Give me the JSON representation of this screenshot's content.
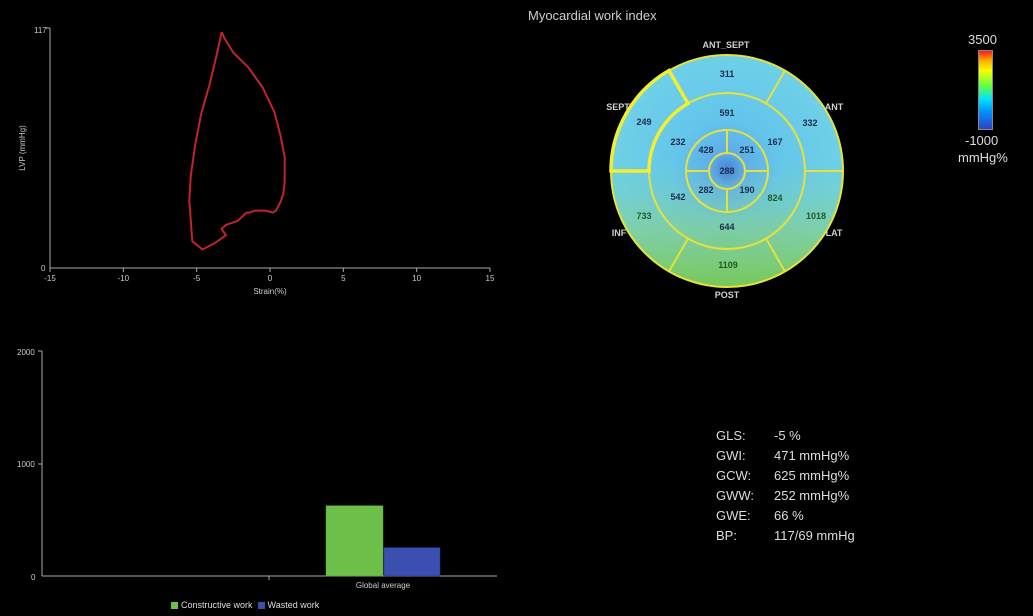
{
  "pv_loop": {
    "ylabel": "LVP (mmHg)",
    "xlabel": "Strain(%)",
    "y_ticks": [
      "117",
      "0"
    ],
    "x_ticks": [
      "-15",
      "-10",
      "-5",
      "0",
      "5",
      "10",
      "15"
    ],
    "colors": {
      "loop": "#c0242a"
    }
  },
  "bullseye": {
    "title": "Myocardial work index",
    "labels": {
      "ant_sept": "ANT_SEPT",
      "ant": "ANT",
      "sept": "SEPT",
      "lat": "LAT",
      "inf": "INF",
      "post": "POST"
    },
    "basal": [
      "311",
      "332",
      "1018",
      "1109",
      "733",
      "249"
    ],
    "mid": [
      "591",
      "167",
      "824",
      "644",
      "542",
      "232"
    ],
    "apical": [
      "251",
      "190",
      "282",
      "428"
    ],
    "apex": "288"
  },
  "colorbar": {
    "max": "3500",
    "min": "-1000",
    "unit": "mmHg%"
  },
  "bar_chart": {
    "y_ticks": [
      "2000",
      "1000",
      "0"
    ],
    "category": "Global average",
    "legend": {
      "constructive": "Constructive work",
      "wasted": "Wasted work"
    },
    "colors": {
      "constructive": "#6cc04a",
      "wasted": "#3a4fb0"
    }
  },
  "metrics": [
    {
      "label": "GLS:",
      "value": "-5 %"
    },
    {
      "label": "GWI:",
      "value": "471 mmHg%"
    },
    {
      "label": "GCW:",
      "value": "625 mmHg%"
    },
    {
      "label": "GWW:",
      "value": "252 mmHg%"
    },
    {
      "label": "GWE:",
      "value": "66 %"
    },
    {
      "label": "BP:",
      "value": "117/69 mmHg"
    }
  ],
  "chart_data": [
    {
      "type": "line",
      "title": "",
      "xlabel": "Strain(%)",
      "ylabel": "LVP (mmHg)",
      "xlim": [
        -15,
        15
      ],
      "ylim": [
        0,
        117
      ],
      "series": [
        {
          "x": [
            -3.3,
            -3.1,
            -2.5,
            -1.5,
            -0.5,
            0.3,
            0.7,
            1.0,
            1.0,
            0.9,
            0.7,
            0.4,
            0.2,
            0.2,
            -0.3,
            -1.0,
            -1.4,
            -1.6,
            -2.2,
            -3.0,
            -3.3,
            -3.0,
            -3.8,
            -4.6,
            -5.3,
            -5.4,
            -5.5,
            -5.4,
            -5.1,
            -4.7,
            -4.1,
            -3.6,
            -3.3
          ],
          "y": [
            115,
            112,
            105,
            98,
            88,
            76,
            65,
            54,
            42,
            36,
            32,
            28,
            27,
            27,
            28,
            28,
            27,
            27,
            23,
            21,
            19,
            16,
            12,
            9,
            13,
            23,
            33,
            45,
            60,
            75,
            90,
            105,
            115
          ]
        }
      ]
    },
    {
      "type": "bar",
      "title": "",
      "categories": [
        "Global average"
      ],
      "ylim": [
        0,
        2000
      ],
      "series": [
        {
          "name": "Constructive work",
          "values": [
            625
          ]
        },
        {
          "name": "Wasted work",
          "values": [
            252
          ]
        }
      ]
    }
  ]
}
